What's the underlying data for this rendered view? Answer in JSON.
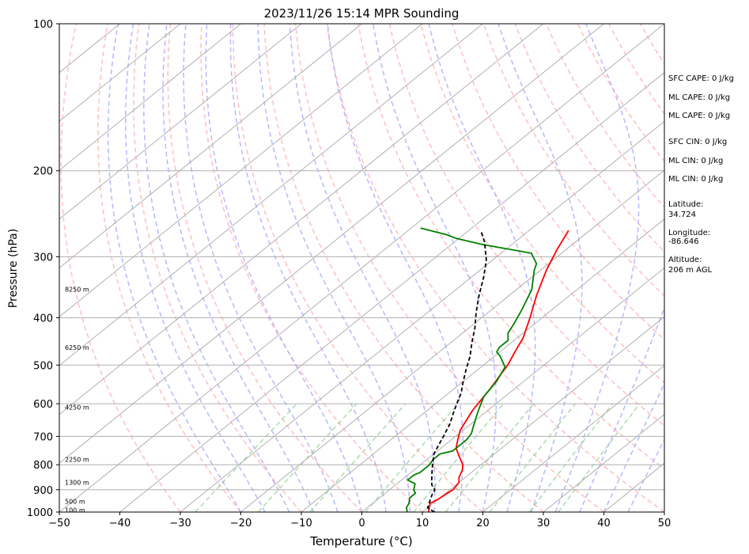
{
  "chart_data": {
    "type": "line",
    "subtype": "skew-t log-p sounding",
    "title": "2023/11/26 15:14 MPR Sounding",
    "xlabel": "Temperature (°C)",
    "ylabel": "Pressure (hPa)",
    "xlim": [
      -50,
      50
    ],
    "ylim": [
      1000,
      100
    ],
    "y_scale": "log",
    "x_ticks": [
      "−50",
      "−40",
      "−30",
      "−20",
      "−10",
      "0",
      "10",
      "20",
      "30",
      "40",
      "50"
    ],
    "y_ticks": [
      "100",
      "200",
      "300",
      "400",
      "500",
      "600",
      "700",
      "800",
      "900",
      "1000"
    ],
    "grid": true,
    "height_labels": [
      {
        "text": "100 m",
        "p": 990
      },
      {
        "text": "500 m",
        "p": 950
      },
      {
        "text": "1300 m",
        "p": 870
      },
      {
        "text": "2250 m",
        "p": 780
      },
      {
        "text": "4250 m",
        "p": 610
      },
      {
        "text": "6250 m",
        "p": 460
      },
      {
        "text": "8250 m",
        "p": 350
      }
    ],
    "side_info": [
      "SFC CAPE: 0 J/kg",
      "ML CAPE: 0 J/kg",
      "ML CAPE: 0 J/kg",
      "SFC CIN: 0 J/kg",
      "ML CIN: 0 J/kg",
      "ML CIN: 0 J/kg",
      "Latitude:",
      "34.724",
      "Longitude:",
      "-86.646",
      "Altitude:",
      "206 m AGL"
    ],
    "colors": {
      "temperature": "#ff0000",
      "dewpoint": "#008000",
      "parcel": "#000000",
      "isotherm": "#b0b0b0",
      "dry_adiabat": "#ffaaaa",
      "moist_adiabat": "#aaaaff",
      "mixing_ratio": "#88cc88"
    },
    "series": [
      {
        "key": "temperature",
        "points": [
          [
            11,
            1000
          ],
          [
            9.5,
            960
          ],
          [
            10,
            940
          ],
          [
            10.2,
            920
          ],
          [
            10.5,
            900
          ],
          [
            10,
            870
          ],
          [
            9,
            850
          ],
          [
            8,
            820
          ],
          [
            7,
            800
          ],
          [
            5.5,
            780
          ],
          [
            4,
            760
          ],
          [
            2.5,
            740
          ],
          [
            1,
            710
          ],
          [
            -0.5,
            680
          ],
          [
            -2.5,
            620
          ],
          [
            -4,
            560
          ],
          [
            -6,
            500
          ],
          [
            -7.5,
            470
          ],
          [
            -9,
            440
          ],
          [
            -12,
            400
          ],
          [
            -15.5,
            360
          ],
          [
            -19,
            320
          ],
          [
            -21.5,
            290
          ],
          [
            -23.5,
            265
          ]
        ]
      },
      {
        "key": "dewpoint",
        "points": [
          [
            7.5,
            1000
          ],
          [
            6.5,
            980
          ],
          [
            6,
            960
          ],
          [
            5,
            935
          ],
          [
            5,
            915
          ],
          [
            4,
            900
          ],
          [
            3,
            875
          ],
          [
            1,
            860
          ],
          [
            1,
            840
          ],
          [
            1.5,
            830
          ],
          [
            1.5,
            815
          ],
          [
            1.5,
            800
          ],
          [
            1,
            780
          ],
          [
            1,
            760
          ],
          [
            2.5,
            750
          ],
          [
            2.5,
            740
          ],
          [
            2.5,
            710
          ],
          [
            2,
            690
          ],
          [
            1,
            670
          ],
          [
            -0.5,
            640
          ],
          [
            -2,
            610
          ],
          [
            -3.5,
            580
          ],
          [
            -4.5,
            540
          ],
          [
            -6,
            505
          ],
          [
            -9,
            480
          ],
          [
            -10.5,
            470
          ],
          [
            -11,
            460
          ],
          [
            -11,
            445
          ],
          [
            -12.5,
            430
          ],
          [
            -13.5,
            410
          ],
          [
            -15,
            385
          ],
          [
            -17.5,
            350
          ],
          [
            -21,
            320
          ],
          [
            -22,
            310
          ],
          [
            -25,
            295
          ],
          [
            -35,
            283
          ],
          [
            -40.5,
            275
          ],
          [
            -43,
            270
          ],
          [
            -48.5,
            262
          ]
        ]
      },
      {
        "key": "parcel",
        "points": [
          [
            12,
            1000
          ],
          [
            11,
            990
          ],
          [
            10,
            980
          ],
          [
            9,
            950
          ],
          [
            8,
            920
          ],
          [
            7.5,
            900
          ],
          [
            6,
            880
          ],
          [
            5,
            860
          ],
          [
            4,
            840
          ],
          [
            3,
            820
          ],
          [
            2,
            800
          ],
          [
            1,
            780
          ],
          [
            0,
            760
          ],
          [
            -1,
            730
          ],
          [
            -2,
            700
          ],
          [
            -3.5,
            660
          ],
          [
            -5,
            630
          ],
          [
            -6.5,
            600
          ],
          [
            -8,
            570
          ],
          [
            -10,
            540
          ],
          [
            -12,
            510
          ],
          [
            -14,
            480
          ],
          [
            -16.5,
            450
          ],
          [
            -19,
            420
          ],
          [
            -22,
            390
          ],
          [
            -25,
            360
          ],
          [
            -28,
            330
          ],
          [
            -31,
            305
          ],
          [
            -35,
            280
          ],
          [
            -38,
            265
          ]
        ]
      }
    ]
  }
}
